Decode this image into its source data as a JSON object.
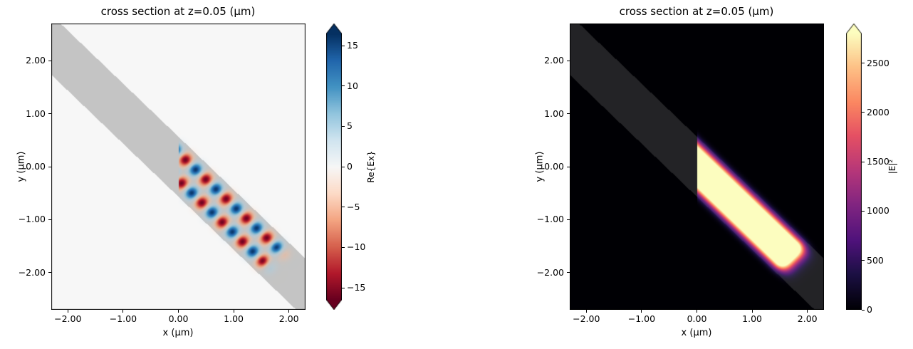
{
  "figure": {
    "background": "#ffffff",
    "kind": "field cross-section figure with two heatmap subplots and colorbars"
  },
  "chart_data": [
    {
      "type": "heatmap",
      "id": "re-ex",
      "title": "cross section at z=0.05 (μm)",
      "xlabel": "x (μm)",
      "ylabel": "y (μm)",
      "xlim": [
        -2.3,
        2.3
      ],
      "ylim": [
        -2.7,
        2.7
      ],
      "grid": false,
      "xticks": [
        {
          "v": -2,
          "label": "−2.00"
        },
        {
          "v": -1,
          "label": "−1.00"
        },
        {
          "v": 0,
          "label": "0.00"
        },
        {
          "v": 1,
          "label": "1.00"
        },
        {
          "v": 2,
          "label": "2.00"
        }
      ],
      "yticks": [
        {
          "v": 2,
          "label": "2.00"
        },
        {
          "v": 1,
          "label": "1.00"
        },
        {
          "v": 0,
          "label": "0.00"
        },
        {
          "v": -1,
          "label": "−1.00"
        },
        {
          "v": -2,
          "label": "−2.00"
        }
      ],
      "colormap": "RdBu",
      "vmin": -16.5,
      "vmax": 16.5,
      "colorbar": {
        "label": "Re{Ex}",
        "extend": "both",
        "ticks": [
          {
            "v": 15,
            "label": "15"
          },
          {
            "v": 10,
            "label": "10"
          },
          {
            "v": 5,
            "label": "5"
          },
          {
            "v": 0,
            "label": "0"
          },
          {
            "v": -5,
            "label": "−5"
          },
          {
            "v": -10,
            "label": "−10"
          },
          {
            "v": -15,
            "label": "−15"
          }
        ]
      },
      "field": {
        "kind": "re_ex",
        "description": "Real part of Ex: wave launched at x=0 propagating along diagonal waveguide (direction (1,−1)/√2) with alternating blue/red lobes in two staggered rows",
        "source_x_um": 0,
        "wavelength_um": 0.52,
        "amplitude": 16,
        "phase_rad": 3.1416,
        "lobe_offset_um": 0.18,
        "lobe_sigma_um": 0.13,
        "s_end_um": 2.3,
        "end_rolloff_um": 0.22,
        "waveguide": {
          "angle_deg": -45,
          "center_um": [
            0,
            0
          ],
          "half_width_um": 0.4,
          "overlay_gray": 100,
          "overlay_alpha": 0.35
        }
      }
    },
    {
      "type": "heatmap",
      "id": "intensity",
      "title": "cross section at z=0.05 (μm)",
      "xlabel": "x (μm)",
      "ylabel": "y (μm)",
      "xlim": [
        -2.3,
        2.3
      ],
      "ylim": [
        -2.7,
        2.7
      ],
      "grid": false,
      "xticks": [
        {
          "v": -2,
          "label": "−2.00"
        },
        {
          "v": -1,
          "label": "−1.00"
        },
        {
          "v": 0,
          "label": "0.00"
        },
        {
          "v": 1,
          "label": "1.00"
        },
        {
          "v": 2,
          "label": "2.00"
        }
      ],
      "yticks": [
        {
          "v": 2,
          "label": "2.00"
        },
        {
          "v": 1,
          "label": "1.00"
        },
        {
          "v": 0,
          "label": "0.00"
        },
        {
          "v": -1,
          "label": "−1.00"
        },
        {
          "v": -2,
          "label": "−2.00"
        }
      ],
      "colormap": "magma",
      "vmin": 0,
      "vmax": 2800,
      "colorbar": {
        "label": "|E|²",
        "extend": "max",
        "ticks": [
          {
            "v": 2500,
            "label": "2500"
          },
          {
            "v": 2000,
            "label": "2000"
          },
          {
            "v": 1500,
            "label": "1500"
          },
          {
            "v": 1000,
            "label": "1000"
          },
          {
            "v": 500,
            "label": "500"
          },
          {
            "v": 0,
            "label": "0"
          }
        ]
      },
      "field": {
        "kind": "intensity",
        "description": "Electric field intensity |E|²: bright saturated stripe confined to the diagonal waveguide from x=0, fading out near (1.9, −1.9)",
        "source_x_um": 0,
        "peak": 4400,
        "core_half_width_um": 0.33,
        "core_power": 4,
        "s_end_um": 2.3,
        "end_rolloff_um": 0.25,
        "waveguide": {
          "angle_deg": -45,
          "center_um": [
            0,
            0
          ],
          "half_width_um": 0.4,
          "overlay_gray": 110,
          "overlay_alpha": 0.32
        }
      }
    }
  ]
}
